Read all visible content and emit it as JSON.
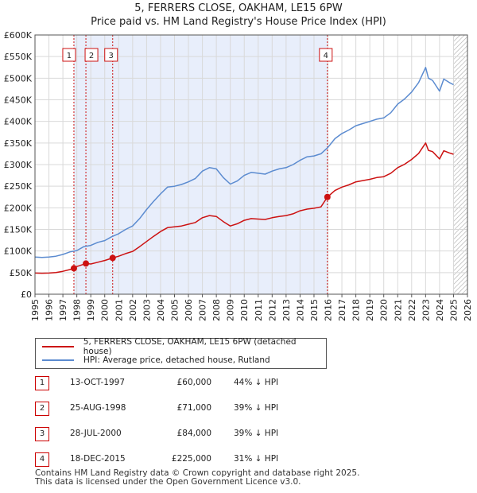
{
  "title": "5, FERRERS CLOSE, OAKHAM, LE15 6PW",
  "subtitle": "Price paid vs. HM Land Registry's House Price Index (HPI)",
  "chart_data": {
    "type": "line",
    "x_range": [
      1995,
      2026
    ],
    "ylim": [
      0,
      600000
    ],
    "y_ticks": [
      {
        "value": 0,
        "label": "£0"
      },
      {
        "value": 50000,
        "label": "£50K"
      },
      {
        "value": 100000,
        "label": "£100K"
      },
      {
        "value": 150000,
        "label": "£150K"
      },
      {
        "value": 200000,
        "label": "£200K"
      },
      {
        "value": 250000,
        "label": "£250K"
      },
      {
        "value": 300000,
        "label": "£300K"
      },
      {
        "value": 350000,
        "label": "£350K"
      },
      {
        "value": 400000,
        "label": "£400K"
      },
      {
        "value": 450000,
        "label": "£450K"
      },
      {
        "value": 500000,
        "label": "£500K"
      },
      {
        "value": 550000,
        "label": "£550K"
      },
      {
        "value": 600000,
        "label": "£600K"
      }
    ],
    "x_ticks": [
      "1995",
      "1996",
      "1997",
      "1998",
      "1999",
      "2000",
      "2001",
      "2002",
      "2003",
      "2004",
      "2005",
      "2006",
      "2007",
      "2008",
      "2009",
      "2010",
      "2011",
      "2012",
      "2013",
      "2014",
      "2015",
      "2016",
      "2017",
      "2018",
      "2019",
      "2020",
      "2021",
      "2022",
      "2023",
      "2024",
      "2025",
      "2026"
    ],
    "shaded_range": [
      1997.79,
      2015.96
    ],
    "forecast_start": 2025.0,
    "series": [
      {
        "name": "HPI: Average price, detached house, Rutland",
        "color": "#5b8bd0",
        "points": [
          [
            1995.0,
            86000
          ],
          [
            1995.5,
            85000
          ],
          [
            1996.0,
            86000
          ],
          [
            1996.5,
            88000
          ],
          [
            1997.0,
            92000
          ],
          [
            1997.5,
            98000
          ],
          [
            1998.0,
            101000
          ],
          [
            1998.5,
            110000
          ],
          [
            1999.0,
            113000
          ],
          [
            1999.5,
            120000
          ],
          [
            2000.0,
            124000
          ],
          [
            2000.5,
            133000
          ],
          [
            2001.0,
            140000
          ],
          [
            2001.5,
            150000
          ],
          [
            2002.0,
            158000
          ],
          [
            2002.5,
            175000
          ],
          [
            2003.0,
            196000
          ],
          [
            2003.5,
            215000
          ],
          [
            2004.0,
            232000
          ],
          [
            2004.5,
            248000
          ],
          [
            2005.0,
            250000
          ],
          [
            2005.5,
            254000
          ],
          [
            2006.0,
            260000
          ],
          [
            2006.5,
            268000
          ],
          [
            2007.0,
            285000
          ],
          [
            2007.5,
            293000
          ],
          [
            2008.0,
            290000
          ],
          [
            2008.5,
            270000
          ],
          [
            2009.0,
            255000
          ],
          [
            2009.5,
            262000
          ],
          [
            2010.0,
            275000
          ],
          [
            2010.5,
            282000
          ],
          [
            2011.0,
            280000
          ],
          [
            2011.5,
            278000
          ],
          [
            2012.0,
            285000
          ],
          [
            2012.5,
            290000
          ],
          [
            2013.0,
            293000
          ],
          [
            2013.5,
            300000
          ],
          [
            2014.0,
            310000
          ],
          [
            2014.5,
            318000
          ],
          [
            2015.0,
            320000
          ],
          [
            2015.5,
            325000
          ],
          [
            2016.0,
            340000
          ],
          [
            2016.5,
            360000
          ],
          [
            2017.0,
            372000
          ],
          [
            2017.5,
            380000
          ],
          [
            2018.0,
            390000
          ],
          [
            2018.5,
            395000
          ],
          [
            2019.0,
            400000
          ],
          [
            2019.5,
            405000
          ],
          [
            2020.0,
            408000
          ],
          [
            2020.5,
            420000
          ],
          [
            2021.0,
            440000
          ],
          [
            2021.5,
            452000
          ],
          [
            2022.0,
            468000
          ],
          [
            2022.5,
            490000
          ],
          [
            2023.0,
            525000
          ],
          [
            2023.2,
            500000
          ],
          [
            2023.5,
            495000
          ],
          [
            2024.0,
            470000
          ],
          [
            2024.3,
            498000
          ],
          [
            2024.7,
            490000
          ],
          [
            2025.0,
            485000
          ]
        ]
      },
      {
        "name": "5, FERRERS CLOSE, OAKHAM, LE15 6PW (detached house)",
        "color": "#cc1111",
        "points": [
          [
            1995.0,
            49000
          ],
          [
            1995.5,
            48500
          ],
          [
            1996.0,
            49000
          ],
          [
            1996.5,
            50000
          ],
          [
            1997.0,
            53000
          ],
          [
            1997.5,
            57000
          ],
          [
            1997.79,
            60000
          ],
          [
            1998.0,
            64000
          ],
          [
            1998.65,
            71000
          ],
          [
            1999.0,
            70000
          ],
          [
            1999.5,
            74000
          ],
          [
            2000.0,
            78000
          ],
          [
            2000.57,
            84000
          ],
          [
            2001.0,
            88000
          ],
          [
            2001.5,
            94000
          ],
          [
            2002.0,
            99000
          ],
          [
            2002.5,
            110000
          ],
          [
            2003.0,
            122000
          ],
          [
            2003.5,
            134000
          ],
          [
            2004.0,
            145000
          ],
          [
            2004.5,
            154000
          ],
          [
            2005.0,
            156000
          ],
          [
            2005.5,
            158000
          ],
          [
            2006.0,
            162000
          ],
          [
            2006.5,
            166000
          ],
          [
            2007.0,
            177000
          ],
          [
            2007.5,
            182000
          ],
          [
            2008.0,
            180000
          ],
          [
            2008.5,
            168000
          ],
          [
            2009.0,
            158000
          ],
          [
            2009.5,
            163000
          ],
          [
            2010.0,
            171000
          ],
          [
            2010.5,
            175000
          ],
          [
            2011.0,
            174000
          ],
          [
            2011.5,
            173000
          ],
          [
            2012.0,
            177000
          ],
          [
            2012.5,
            180000
          ],
          [
            2013.0,
            182000
          ],
          [
            2013.5,
            186000
          ],
          [
            2014.0,
            193000
          ],
          [
            2014.5,
            197000
          ],
          [
            2015.0,
            199000
          ],
          [
            2015.5,
            202000
          ],
          [
            2015.96,
            225000
          ],
          [
            2016.5,
            240000
          ],
          [
            2017.0,
            248000
          ],
          [
            2017.5,
            253000
          ],
          [
            2018.0,
            260000
          ],
          [
            2018.5,
            263000
          ],
          [
            2019.0,
            266000
          ],
          [
            2019.5,
            270000
          ],
          [
            2020.0,
            272000
          ],
          [
            2020.5,
            280000
          ],
          [
            2021.0,
            293000
          ],
          [
            2021.5,
            301000
          ],
          [
            2022.0,
            312000
          ],
          [
            2022.5,
            326000
          ],
          [
            2023.0,
            350000
          ],
          [
            2023.2,
            333000
          ],
          [
            2023.5,
            330000
          ],
          [
            2024.0,
            313000
          ],
          [
            2024.3,
            332000
          ],
          [
            2024.7,
            327000
          ],
          [
            2025.0,
            324000
          ]
        ]
      }
    ],
    "transactions": [
      {
        "num": "1",
        "x": 1997.79,
        "price": 60000,
        "date": "13-OCT-1997",
        "price_label": "£60,000",
        "hpi": "44% ↓ HPI"
      },
      {
        "num": "2",
        "x": 1998.65,
        "price": 71000,
        "date": "25-AUG-1998",
        "price_label": "£71,000",
        "hpi": "39% ↓ HPI"
      },
      {
        "num": "3",
        "x": 2000.57,
        "price": 84000,
        "date": "28-JUL-2000",
        "price_label": "£84,000",
        "hpi": "39% ↓ HPI"
      },
      {
        "num": "4",
        "x": 2015.96,
        "price": 225000,
        "date": "18-DEC-2015",
        "price_label": "£225,000",
        "hpi": "31% ↓ HPI"
      }
    ]
  },
  "legend": {
    "property_label": "5, FERRERS CLOSE, OAKHAM, LE15 6PW (detached house)",
    "hpi_label": "HPI: Average price, detached house, Rutland",
    "property_color": "#cc1111",
    "hpi_color": "#5b8bd0"
  },
  "footer": {
    "line1": "Contains HM Land Registry data © Crown copyright and database right 2025.",
    "line2": "This data is licensed under the Open Government Licence v3.0."
  }
}
